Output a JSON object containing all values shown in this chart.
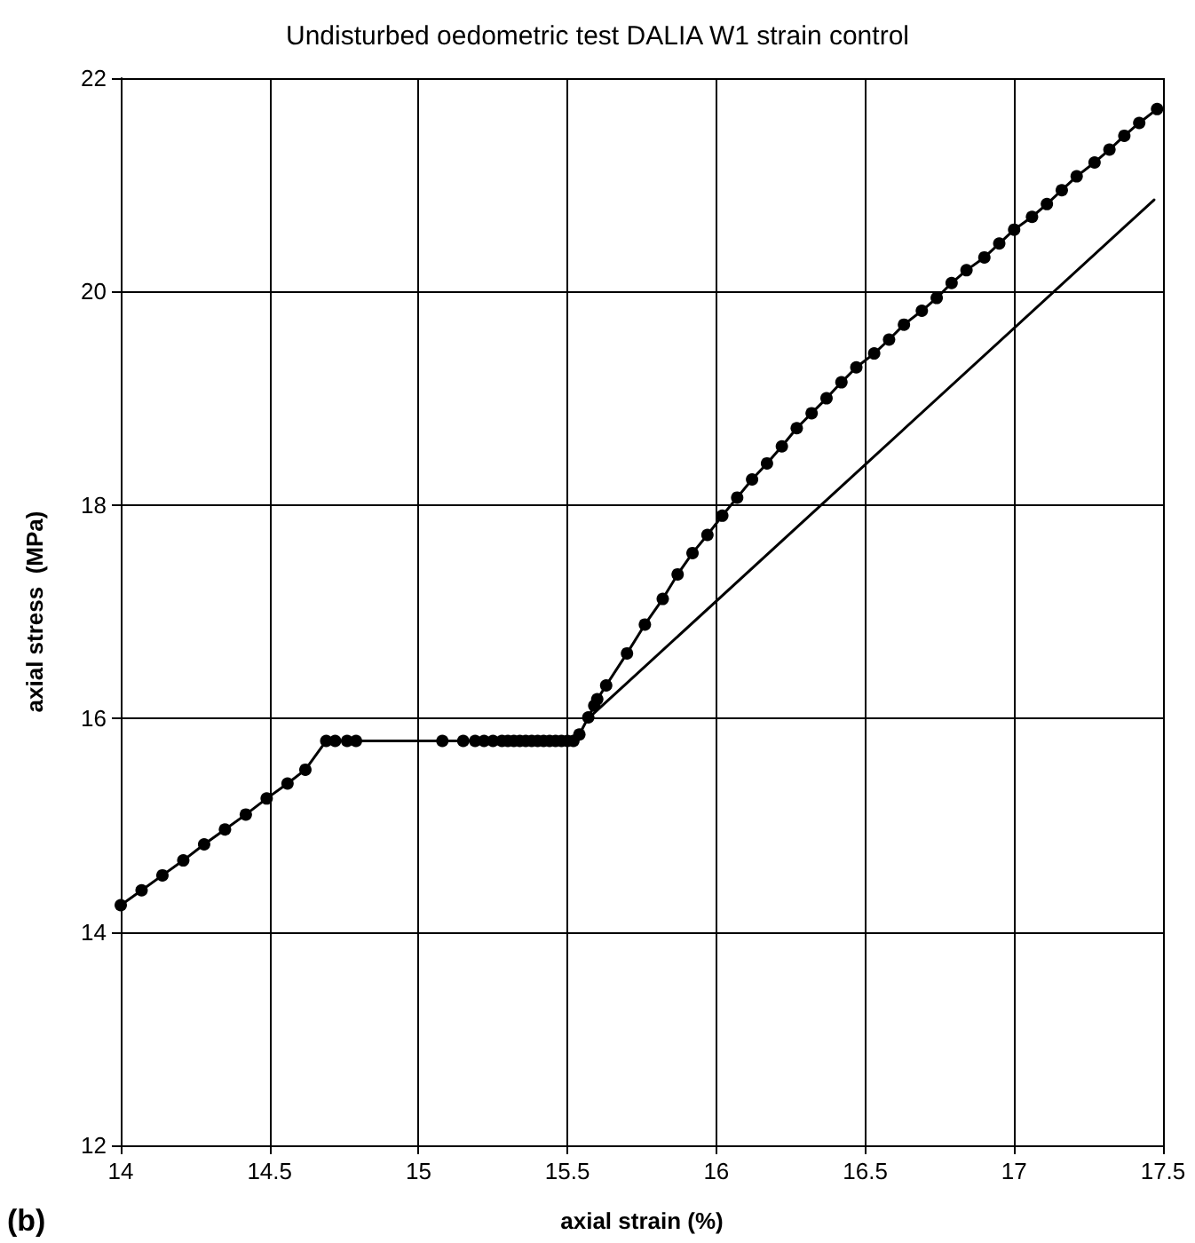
{
  "chart_data": {
    "type": "line",
    "title": "Undisturbed oedometric test DALIA W1 strain control",
    "xlabel": "axial strain (%)",
    "ylabel": "axial stress  (MPa)",
    "annotations": [
      "(b)"
    ],
    "xlim": [
      14,
      17.5
    ],
    "xticks": [
      14,
      14.5,
      15,
      15.5,
      16,
      16.5,
      17,
      17.5
    ],
    "ylim": [
      12,
      22
    ],
    "yticks": [
      12,
      14,
      16,
      18,
      20,
      22
    ],
    "grid": true,
    "series": [
      {
        "color": "#000000",
        "marker": "circle",
        "line_style": "solid",
        "x": [
          14.0,
          14.07,
          14.14,
          14.21,
          14.28,
          14.35,
          14.42,
          14.49,
          14.56,
          14.62,
          14.69,
          14.72,
          14.76,
          14.79,
          15.08,
          15.15,
          15.19,
          15.22,
          15.25,
          15.28,
          15.3,
          15.32,
          15.34,
          15.36,
          15.38,
          15.4,
          15.42,
          15.44,
          15.46,
          15.48,
          15.5,
          15.52,
          15.54,
          15.57,
          15.59,
          15.6,
          15.63,
          15.7,
          15.76,
          15.82,
          15.87,
          15.92,
          15.97,
          16.02,
          16.07,
          16.12,
          16.17,
          16.22,
          16.27,
          16.32,
          16.37,
          16.42,
          16.47,
          16.53,
          16.58,
          16.63,
          16.69,
          16.74,
          16.79,
          16.84,
          16.9,
          16.95,
          17.0,
          17.06,
          17.11,
          17.16,
          17.21,
          17.27,
          17.32,
          17.37,
          17.42,
          17.48
        ],
        "values": [
          14.25,
          14.39,
          14.53,
          14.67,
          14.82,
          14.96,
          15.1,
          15.25,
          15.39,
          15.52,
          15.79,
          15.79,
          15.79,
          15.79,
          15.79,
          15.79,
          15.79,
          15.79,
          15.79,
          15.79,
          15.79,
          15.79,
          15.79,
          15.79,
          15.79,
          15.79,
          15.79,
          15.79,
          15.79,
          15.79,
          15.79,
          15.79,
          15.85,
          16.01,
          16.12,
          16.18,
          16.31,
          16.61,
          16.88,
          17.12,
          17.35,
          17.55,
          17.72,
          17.9,
          18.07,
          18.24,
          18.39,
          18.55,
          18.72,
          18.86,
          19.0,
          19.15,
          19.29,
          19.42,
          19.55,
          19.69,
          19.82,
          19.94,
          20.08,
          20.2,
          20.32,
          20.45,
          20.58,
          20.7,
          20.82,
          20.95,
          21.08,
          21.21,
          21.33,
          21.46,
          21.58,
          21.71
        ]
      },
      {
        "color": "#000000",
        "marker": "none",
        "line_style": "solid",
        "x": [
          15.57,
          17.47
        ],
        "values": [
          16.0,
          20.86
        ]
      }
    ]
  }
}
